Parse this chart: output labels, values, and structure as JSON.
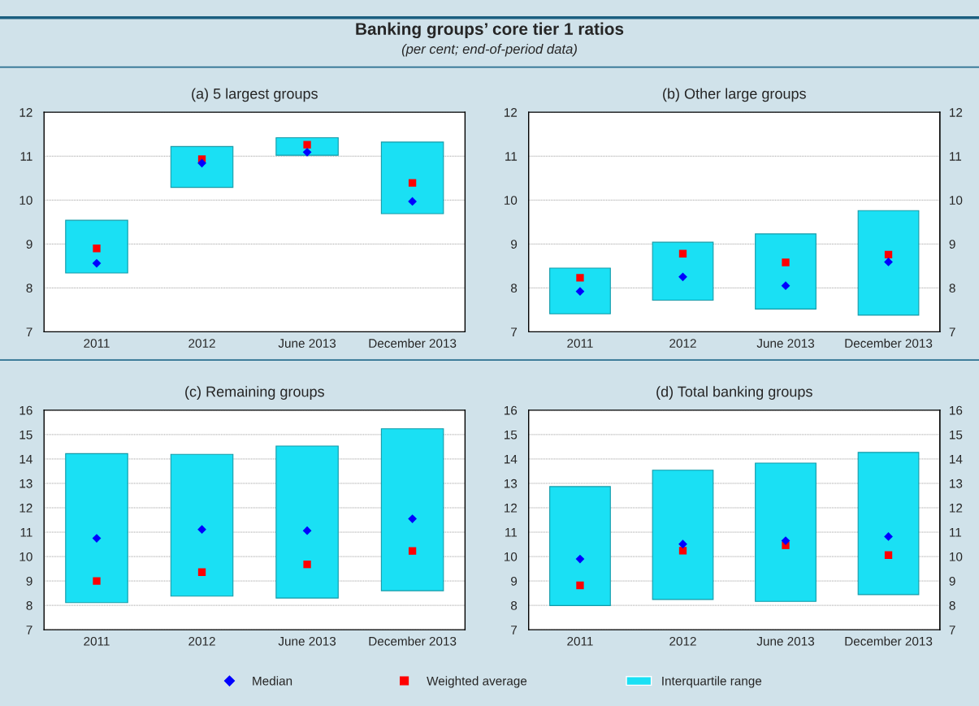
{
  "chart_data": [
    {
      "type": "bar",
      "title": "(a) 5 largest groups",
      "annotations": [
        "Banking groups’ core tier 1 ratios",
        "(per cent; end-of-period data)"
      ],
      "categories": [
        "2011",
        "2012",
        "June 2013",
        "December 2013"
      ],
      "ylim": [
        7,
        12
      ],
      "yticks": [
        7,
        8,
        9,
        10,
        11,
        12
      ],
      "grid": "y",
      "series": [
        {
          "color": "#1ae0f4",
          "base": [
            8.34,
            10.29,
            11.02,
            9.69
          ],
          "values": [
            1.2,
            0.93,
            0.4,
            1.63
          ]
        },
        {
          "type": "scatter",
          "color": "#ff0000",
          "marker": "square",
          "values": [
            8.9,
            10.93,
            11.26,
            10.39
          ]
        },
        {
          "type": "scatter",
          "color": "#0000ff",
          "marker": "diamond",
          "values": [
            8.56,
            10.84,
            11.09,
            9.97
          ]
        }
      ]
    },
    {
      "type": "bar",
      "title": "(b) Other large groups",
      "categories": [
        "2011",
        "2012",
        "June 2013",
        "December 2013"
      ],
      "ylim": [
        7,
        12
      ],
      "yticks": [
        7,
        8,
        9,
        10,
        11,
        12
      ],
      "y2lim": [
        7,
        12
      ],
      "y2ticks": [
        7,
        8,
        9,
        10,
        11,
        12
      ],
      "grid": "y",
      "series": [
        {
          "color": "#1ae0f4",
          "base": [
            7.41,
            7.72,
            7.52,
            7.38
          ],
          "values": [
            1.04,
            1.32,
            1.71,
            2.38
          ]
        },
        {
          "type": "scatter",
          "color": "#ff0000",
          "marker": "square",
          "values": [
            8.23,
            8.78,
            8.58,
            8.76
          ]
        },
        {
          "type": "scatter",
          "color": "#0000ff",
          "marker": "diamond",
          "values": [
            7.92,
            8.25,
            8.05,
            8.59
          ]
        }
      ]
    },
    {
      "type": "bar",
      "title": "(c) Remaining groups",
      "categories": [
        "2011",
        "2012",
        "June 2013",
        "December 2013"
      ],
      "ylim": [
        7,
        16
      ],
      "yticks": [
        7,
        8,
        9,
        10,
        11,
        12,
        13,
        14,
        15,
        16
      ],
      "grid": "y",
      "series": [
        {
          "color": "#1ae0f4",
          "base": [
            8.11,
            8.38,
            8.3,
            8.6
          ],
          "values": [
            6.11,
            5.81,
            6.23,
            6.64
          ]
        },
        {
          "type": "scatter",
          "color": "#ff0000",
          "marker": "square",
          "values": [
            9.0,
            9.36,
            9.68,
            10.23
          ]
        },
        {
          "type": "scatter",
          "color": "#0000ff",
          "marker": "diamond",
          "values": [
            10.75,
            11.11,
            11.06,
            11.55
          ]
        }
      ]
    },
    {
      "type": "bar",
      "title": "(d) Total banking groups",
      "categories": [
        "2011",
        "2012",
        "June 2013",
        "December 2013"
      ],
      "ylim": [
        7,
        16
      ],
      "yticks": [
        7,
        8,
        9,
        10,
        11,
        12,
        13,
        14,
        15,
        16
      ],
      "y2lim": [
        7,
        16
      ],
      "y2ticks": [
        7,
        8,
        9,
        10,
        11,
        12,
        13,
        14,
        15,
        16
      ],
      "grid": "y",
      "legend": "bottom",
      "series": [
        {
          "name": "Interquartile range",
          "color": "#1ae0f4",
          "base": [
            7.99,
            8.24,
            8.16,
            8.44
          ],
          "values": [
            4.88,
            5.3,
            5.67,
            5.83
          ]
        },
        {
          "type": "scatter",
          "name": "Weighted average",
          "color": "#ff0000",
          "marker": "square",
          "values": [
            8.82,
            10.24,
            10.46,
            10.06
          ]
        },
        {
          "type": "scatter",
          "name": "Median",
          "color": "#0000ff",
          "marker": "diamond",
          "values": [
            9.9,
            10.51,
            10.65,
            10.82
          ]
        }
      ]
    }
  ]
}
